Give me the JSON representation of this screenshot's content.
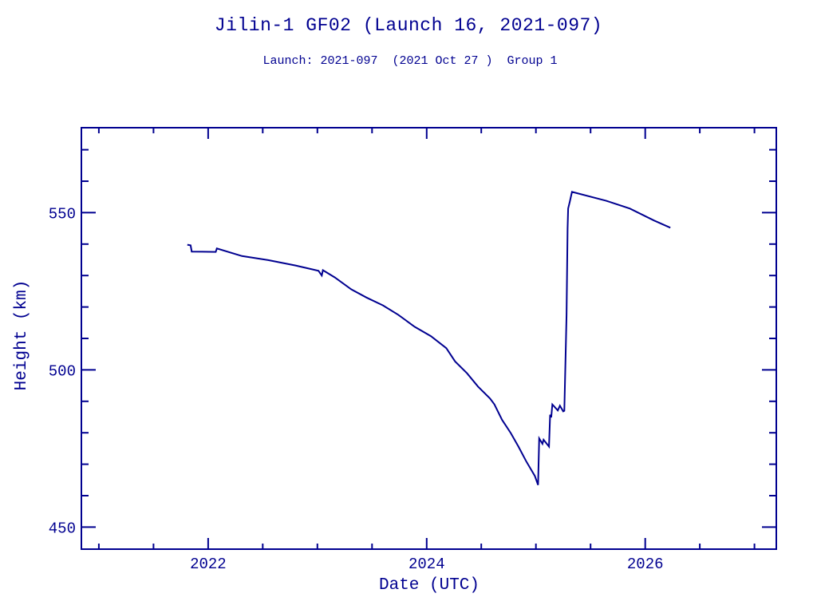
{
  "page": {
    "background_color": "#ffffff",
    "accent_color": "#000090"
  },
  "chart_data": {
    "type": "line",
    "title": "Jilin-1 GF02 (Launch 16, 2021-097)",
    "subtitle": "Launch: 2021-097  (2021 Oct 27 )  Group 1",
    "xlabel": "Date (UTC)",
    "ylabel": "Height (km)",
    "xlim": [
      2020.84,
      2027.2
    ],
    "ylim": [
      443,
      577
    ],
    "x_major_ticks": [
      2022,
      2024,
      2026
    ],
    "x_major_tick_labels": [
      "2022",
      "2024",
      "2026"
    ],
    "x_minor_tick_step": 0.5,
    "x_minor_tick_range": [
      2021,
      2027
    ],
    "y_major_ticks": [
      450,
      500,
      550
    ],
    "y_major_tick_labels": [
      "450",
      "500",
      "550"
    ],
    "y_minor_tick_step": 10,
    "y_minor_tick_range": [
      450,
      570
    ],
    "grid": false,
    "legend": "none",
    "line_color": "#000090",
    "series": [
      {
        "name": "height-km",
        "points": [
          [
            2021.81,
            539.8
          ],
          [
            2021.84,
            539.6
          ],
          [
            2021.85,
            537.6
          ],
          [
            2022.07,
            537.5
          ],
          [
            2022.08,
            538.6
          ],
          [
            2022.31,
            536.2
          ],
          [
            2022.55,
            534.9
          ],
          [
            2022.8,
            533.2
          ],
          [
            2023.01,
            531.5
          ],
          [
            2023.04,
            530.0
          ],
          [
            2023.05,
            531.7
          ],
          [
            2023.16,
            529.4
          ],
          [
            2023.31,
            525.6
          ],
          [
            2023.45,
            523.0
          ],
          [
            2023.6,
            520.5
          ],
          [
            2023.74,
            517.5
          ],
          [
            2023.89,
            513.7
          ],
          [
            2024.04,
            510.7
          ],
          [
            2024.18,
            506.9
          ],
          [
            2024.26,
            502.7
          ],
          [
            2024.37,
            498.9
          ],
          [
            2024.47,
            494.7
          ],
          [
            2024.58,
            490.9
          ],
          [
            2024.62,
            489.0
          ],
          [
            2024.69,
            484.1
          ],
          [
            2024.77,
            479.9
          ],
          [
            2024.84,
            475.6
          ],
          [
            2024.91,
            471.0
          ],
          [
            2024.99,
            466.3
          ],
          [
            2025.02,
            463.4
          ],
          [
            2025.03,
            478.2
          ],
          [
            2025.06,
            476.5
          ],
          [
            2025.07,
            477.8
          ],
          [
            2025.12,
            475.6
          ],
          [
            2025.13,
            485.7
          ],
          [
            2025.14,
            484.9
          ],
          [
            2025.15,
            489.0
          ],
          [
            2025.2,
            487.1
          ],
          [
            2025.22,
            488.6
          ],
          [
            2025.25,
            486.8
          ],
          [
            2025.26,
            487.0
          ],
          [
            2025.28,
            517.5
          ],
          [
            2025.29,
            545.0
          ],
          [
            2025.295,
            551.3
          ],
          [
            2025.31,
            553.5
          ],
          [
            2025.33,
            556.6
          ],
          [
            2025.64,
            553.8
          ],
          [
            2025.86,
            551.3
          ],
          [
            2026.08,
            547.5
          ],
          [
            2026.23,
            545.2
          ]
        ]
      }
    ]
  }
}
